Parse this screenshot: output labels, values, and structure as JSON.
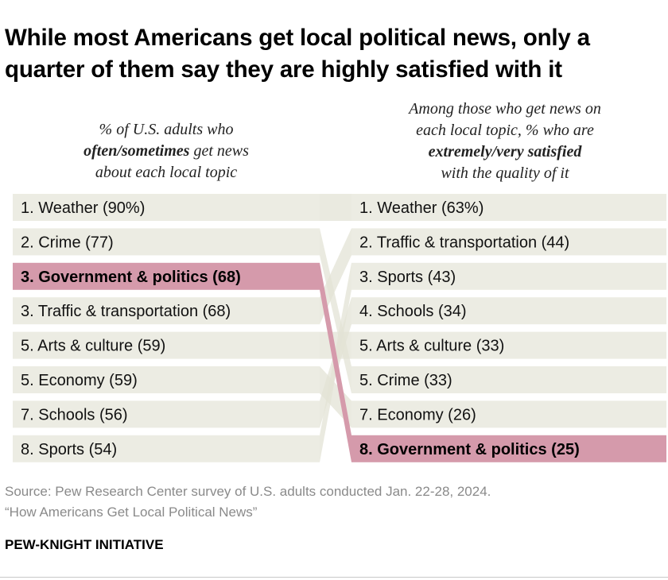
{
  "title": "While most Americans get local political news, only a quarter of them say they are highly satisfied with it",
  "left_header": {
    "line1": "% of U.S. adults who",
    "line2_bold": "often/sometimes",
    "line2_rest": " get news",
    "line3": "about each local topic"
  },
  "right_header": {
    "line1": "Among those who get news on",
    "line2": "each local topic, % who are",
    "line3_bold": "extremely/very satisfied",
    "line4": "with the quality of it"
  },
  "chart_data": {
    "type": "table",
    "highlight_color": "#d59aab",
    "row_color": "#ecece3",
    "connector_color": "#e3e3d5",
    "left": [
      {
        "rank": "1",
        "topic": "Weather",
        "value": 90,
        "label": "1. Weather (90%)"
      },
      {
        "rank": "2",
        "topic": "Crime",
        "value": 77,
        "label": "2. Crime (77)"
      },
      {
        "rank": "3",
        "topic": "Government & politics",
        "value": 68,
        "label": "3. Government & politics (68)",
        "highlight": true
      },
      {
        "rank": "3",
        "topic": "Traffic & transportation",
        "value": 68,
        "label": "3. Traffic & transportation (68)"
      },
      {
        "rank": "5",
        "topic": "Arts & culture",
        "value": 59,
        "label": "5. Arts & culture (59)"
      },
      {
        "rank": "5",
        "topic": "Economy",
        "value": 59,
        "label": "5. Economy (59)"
      },
      {
        "rank": "7",
        "topic": "Schools",
        "value": 56,
        "label": "7. Schools (56)"
      },
      {
        "rank": "8",
        "topic": "Sports",
        "value": 54,
        "label": "8. Sports (54)"
      }
    ],
    "right": [
      {
        "rank": "1",
        "topic": "Weather",
        "value": 63,
        "label": "1. Weather (63%)"
      },
      {
        "rank": "2",
        "topic": "Traffic & transportation",
        "value": 44,
        "label": "2. Traffic & transportation (44)"
      },
      {
        "rank": "3",
        "topic": "Sports",
        "value": 43,
        "label": "3. Sports (43)"
      },
      {
        "rank": "4",
        "topic": "Schools",
        "value": 34,
        "label": "4. Schools (34)"
      },
      {
        "rank": "5",
        "topic": "Arts & culture",
        "value": 33,
        "label": "5. Arts & culture (33)"
      },
      {
        "rank": "5",
        "topic": "Crime",
        "value": 33,
        "label": "5. Crime (33)"
      },
      {
        "rank": "7",
        "topic": "Economy",
        "value": 26,
        "label": "7. Economy (26)"
      },
      {
        "rank": "8",
        "topic": "Government & politics",
        "value": 25,
        "label": "8. Government & politics (25)",
        "highlight": true
      }
    ]
  },
  "source": {
    "line1": "Source: Pew Research Center survey of U.S. adults conducted Jan. 22-28, 2024.",
    "line2": "“How Americans Get Local Political News”"
  },
  "brand": "PEW-KNIGHT INITIATIVE"
}
